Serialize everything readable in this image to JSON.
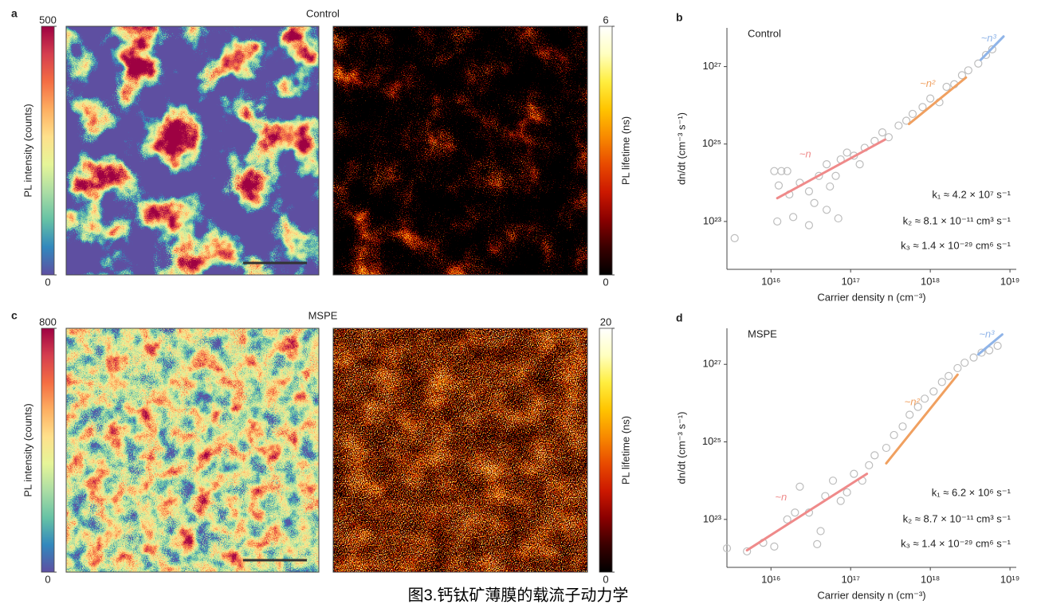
{
  "caption": "图3.钙钛矿薄膜的载流子动力学",
  "chart_data": [
    {
      "type": "heatmap",
      "panel": "a",
      "title": "Control",
      "images": [
        {
          "colorbar_label": "PL intensity (counts)",
          "colormap": "spectral",
          "clim": [
            0,
            500
          ],
          "cticks": [
            0,
            500
          ]
        },
        {
          "colorbar_label": "PL lifetime (ns)",
          "colormap": "hot",
          "clim": [
            0,
            6
          ],
          "cticks": [
            0,
            6
          ]
        }
      ]
    },
    {
      "type": "scatter",
      "panel": "b",
      "title": "Control",
      "xlabel": "Carrier density n (cm⁻³)",
      "ylabel": "dn/dt (cm⁻³ s⁻¹)",
      "log_x": true,
      "log_y": true,
      "xlim": [
        2800000000000000.0,
        1.2e+19
      ],
      "ylim": [
        5.8e+21,
        1e+28
      ],
      "xticks": [
        {
          "value": 1e+16,
          "label": "10¹⁶"
        },
        {
          "value": 1e+17,
          "label": "10¹⁷"
        },
        {
          "value": 1e+18,
          "label": "10¹⁸"
        },
        {
          "value": 1e+19,
          "label": "10¹⁹"
        }
      ],
      "yticks": [
        {
          "value": 1e+23,
          "label": "10²³"
        },
        {
          "value": 1e+25,
          "label": "10²⁵"
        },
        {
          "value": 1e+27,
          "label": "10²⁷"
        }
      ],
      "points": {
        "color": "#bdbdbd",
        "x": [
          3500000000000000.0,
          1.25e+16,
          1.1e+16,
          1.35e+16,
          1.6e+16,
          1.2e+16,
          1.9e+16,
          1.7e+16,
          2.3e+16,
          3e+16,
          3.5e+16,
          4e+16,
          5e+16,
          5.5e+16,
          6.5e+16,
          7.5e+16,
          7e+16,
          9e+16,
          1.1e+17,
          1.3e+17,
          1.5e+17,
          2e+17,
          2.5e+17,
          3e+17,
          4e+17,
          5e+17,
          6e+17,
          8e+17,
          1e+18,
          1.3e+18,
          1.6e+18,
          2e+18,
          2.5e+18,
          3e+18,
          4e+18,
          5e+18,
          6e+18,
          3e+16,
          5e+16
        ],
        "y": [
          3.7e+22,
          8.5e+23,
          2e+24,
          2e+24,
          2e+24,
          1e+23,
          1.3e+23,
          5e+23,
          1e+24,
          6e+23,
          3e+23,
          1.5e+24,
          3e+24,
          8e+23,
          1.5e+24,
          4e+24,
          1.2e+23,
          6e+24,
          5e+24,
          3e+24,
          8e+24,
          1.2e+25,
          2e+25,
          1.5e+25,
          3e+25,
          4e+25,
          6e+25,
          9e+25,
          1.5e+26,
          1.2e+26,
          3e+26,
          3.5e+26,
          6e+26,
          8e+26,
          1.2e+27,
          2e+27,
          2.8e+27,
          8e+22,
          2e+23
        ]
      },
      "fits": [
        {
          "label": "~n",
          "color": "#ef8a8a",
          "x": [
            1.2e+16,
            2.7e+17
          ],
          "y": [
            4e+23,
            1.3e+25
          ]
        },
        {
          "label": "~n²",
          "color": "#f0a060",
          "x": [
            5.4e+17,
            2.8e+18
          ],
          "y": [
            3.3e+25,
            5.2e+26
          ]
        },
        {
          "label": "~n³",
          "color": "#8fb4e8",
          "x": [
            4.3e+18,
            8.3e+18
          ],
          "y": [
            1.5e+27,
            6e+27
          ]
        }
      ],
      "annotations": [
        "k₁ ≈ 4.2 × 10⁷ s⁻¹",
        "k₂ ≈ 8.1 × 10⁻¹¹ cm³ s⁻¹",
        "k₃ ≈ 1.4 × 10⁻²⁹ cm⁶ s⁻¹"
      ]
    },
    {
      "type": "heatmap",
      "panel": "c",
      "title": "MSPE",
      "images": [
        {
          "colorbar_label": "PL intensity (counts)",
          "colormap": "spectral",
          "clim": [
            0,
            800
          ],
          "cticks": [
            0,
            800
          ]
        },
        {
          "colorbar_label": "PL lifetime (ns)",
          "colormap": "hot",
          "clim": [
            0,
            20
          ],
          "cticks": [
            0,
            20
          ]
        }
      ]
    },
    {
      "type": "scatter",
      "panel": "d",
      "title": "MSPE",
      "xlabel": "Carrier density n (cm⁻³)",
      "ylabel": "dn/dt (cm⁻³ s⁻¹)",
      "log_x": true,
      "log_y": true,
      "xlim": [
        2800000000000000.0,
        1.2e+19
      ],
      "ylim": [
        5.8e+21,
        8.5e+27
      ],
      "xticks": [
        {
          "value": 1e+16,
          "label": "10¹⁶"
        },
        {
          "value": 1e+17,
          "label": "10¹⁷"
        },
        {
          "value": 1e+18,
          "label": "10¹⁸"
        },
        {
          "value": 1e+19,
          "label": "10¹⁹"
        }
      ],
      "yticks": [
        {
          "value": 1e+23,
          "label": "10²³"
        },
        {
          "value": 1e+25,
          "label": "10²⁵"
        },
        {
          "value": 1e+27,
          "label": "10²⁷"
        }
      ],
      "points": {
        "color": "#bdbdbd",
        "x": [
          2800000000000000.0,
          5000000000000000.0,
          8000000000000000.0,
          1.1e+16,
          1.6e+16,
          2e+16,
          2.3e+16,
          3e+16,
          3.8e+16,
          4.2e+16,
          4.8e+16,
          6e+16,
          7.5e+16,
          9e+16,
          1.1e+17,
          1.4e+17,
          1.7e+17,
          2e+17,
          2.8e+17,
          3.5e+17,
          4.5e+17,
          5.5e+17,
          7e+17,
          8.5e+17,
          1.1e+18,
          1.4e+18,
          1.7e+18,
          2.2e+18,
          2.7e+18,
          3.5e+18,
          4.4e+18,
          5.5e+18,
          7e+18
        ],
        "y": [
          1.8e+22,
          1.5e+22,
          2.5e+22,
          2e+22,
          1e+23,
          1.5e+23,
          7e+23,
          1.5e+23,
          2.3e+22,
          5e+22,
          4e+23,
          1e+24,
          3e+23,
          5e+23,
          1.5e+24,
          1e+24,
          2.5e+24,
          4.5e+24,
          7e+24,
          1.5e+25,
          2.5e+25,
          5e+25,
          8e+25,
          1.3e+26,
          2e+26,
          3.5e+26,
          5e+26,
          8e+26,
          1.1e+27,
          1.5e+27,
          2e+27,
          2.3e+27,
          3e+27
        ]
      },
      "fits": [
        {
          "label": "~n",
          "color": "#ef8a8a",
          "x": [
            5000000000000000.0,
            1.6e+17
          ],
          "y": [
            1.6e+22,
            1.5e+24
          ]
        },
        {
          "label": "~n²",
          "color": "#f0a060",
          "x": [
            2.8e+17,
            2.2e+18
          ],
          "y": [
            2.8e+24,
            5.4e+26
          ]
        },
        {
          "label": "~n³",
          "color": "#8fb4e8",
          "x": [
            4e+18,
            8e+18
          ],
          "y": [
            1.8e+27,
            5.9e+27
          ]
        }
      ],
      "annotations": [
        "k₁ ≈ 6.2 × 10⁶ s⁻¹",
        "k₂ ≈ 8.7 × 10⁻¹¹ cm³ s⁻¹",
        "k₃ ≈ 1.4 × 10⁻²⁹ cm⁶ s⁻¹"
      ]
    }
  ]
}
